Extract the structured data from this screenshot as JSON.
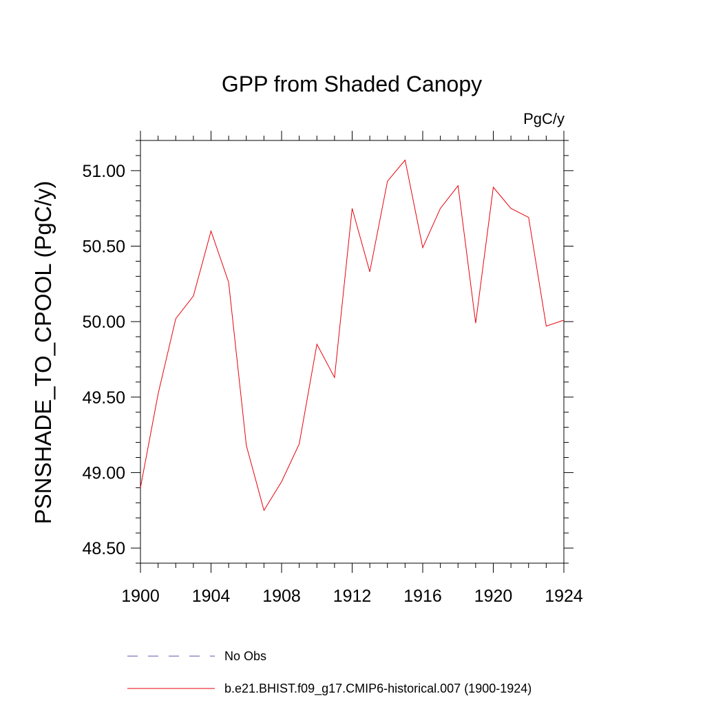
{
  "chart_data": {
    "type": "line",
    "title": "GPP from Shaded Canopy",
    "units_label": "PgC/y",
    "ylabel": "PSNSHADE_TO_CPOOL  (PgC/y)",
    "xlabel": "",
    "xlim": [
      1900,
      1924
    ],
    "ylim": [
      48.4,
      51.2
    ],
    "x_ticks": [
      1900,
      1904,
      1908,
      1912,
      1916,
      1920,
      1924
    ],
    "x_tick_labels": [
      "1900",
      "1904",
      "1908",
      "1912",
      "1916",
      "1920",
      "1924"
    ],
    "y_ticks": [
      48.5,
      49.0,
      49.5,
      50.0,
      50.5,
      51.0
    ],
    "y_tick_labels": [
      "48.50",
      "49.00",
      "49.50",
      "50.00",
      "50.50",
      "51.00"
    ],
    "grid": false,
    "legend_position": "bottom",
    "series": [
      {
        "name": "b.e21.BHIST.f09_g17.CMIP6-historical.007 (1900-1924)",
        "color": "#e8000b",
        "x": [
          1900,
          1901,
          1902,
          1903,
          1904,
          1905,
          1906,
          1907,
          1908,
          1909,
          1910,
          1911,
          1912,
          1913,
          1914,
          1915,
          1916,
          1917,
          1918,
          1919,
          1920,
          1921,
          1922,
          1923,
          1924
        ],
        "y": [
          48.9,
          49.52,
          50.02,
          50.17,
          50.6,
          50.26,
          49.18,
          48.75,
          48.94,
          49.19,
          49.85,
          49.63,
          50.75,
          50.33,
          50.93,
          51.07,
          50.49,
          50.75,
          50.9,
          49.99,
          50.89,
          50.75,
          50.69,
          49.97,
          50.01
        ]
      }
    ],
    "legend_entries": [
      {
        "label": "No Obs",
        "color": "#5555aa",
        "style": "dashed"
      },
      {
        "label": "b.e21.BHIST.f09_g17.CMIP6-historical.007 (1900-1924)",
        "color": "#e8000b",
        "style": "solid"
      }
    ]
  }
}
